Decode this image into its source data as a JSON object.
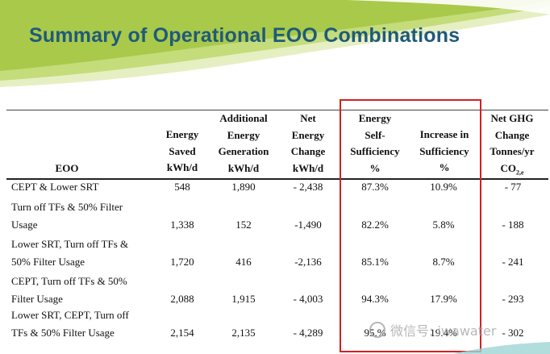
{
  "slide": {
    "title": "Summary of Operational EOO Combinations"
  },
  "table": {
    "headers": {
      "eoo": "EOO",
      "energy_saved": "Energy\nSaved\nkWh/d",
      "additional_generation": "Additional\nEnergy\nGeneration\nkWh/d",
      "net_energy_change": "Net\nEnergy\nChange\nkWh/d",
      "self_sufficiency": "Energy\nSelf-\nSufficiency\n%",
      "increase_sufficiency": "Increase in\nSufficiency\n%",
      "ghg_line1": "Net GHG",
      "ghg_line2": "Change",
      "ghg_line3": "Tonnes/yr",
      "ghg_co2": "CO",
      "ghg_sub": "2,e"
    },
    "rows": [
      {
        "eoo": "CEPT & Lower SRT",
        "saved": "548",
        "generation": "1,890",
        "net": "- 2,438",
        "self": "87.3%",
        "increase": "10.9%",
        "ghg": "- 77"
      },
      {
        "eoo": "Turn off TFs & 50% Filter\nUsage",
        "saved": "1,338",
        "generation": "152",
        "net": "-1,490",
        "self": "82.2%",
        "increase": "5.8%",
        "ghg": "- 188"
      },
      {
        "eoo": "Lower SRT, Turn off TFs &\n50% Filter  Usage",
        "saved": "1,720",
        "generation": "416",
        "net": "-2,136",
        "self": "85.1%",
        "increase": "8.7%",
        "ghg": "- 241"
      },
      {
        "eoo": "CEPT, Turn off TFs & 50%\nFilter  Usage",
        "saved": "2,088",
        "generation": "1,915",
        "net": "- 4,003",
        "self": "94.3%",
        "increase": "17.9%",
        "ghg": "- 293"
      },
      {
        "eoo": "Lower SRT, CEPT, Turn off\nTFs & 50% Filter  Usage",
        "saved": "2,154",
        "generation": "2,135",
        "net": "- 4,289",
        "self": "95.%",
        "increase": "19.4%",
        "ghg": "- 302"
      }
    ]
  },
  "watermark": {
    "text": "微信号: iwawater"
  },
  "colors": {
    "title": "#1f5a7a",
    "highlight_border": "#d42020",
    "band_green": "#a9c94a",
    "band_light": "#e6efc2"
  }
}
